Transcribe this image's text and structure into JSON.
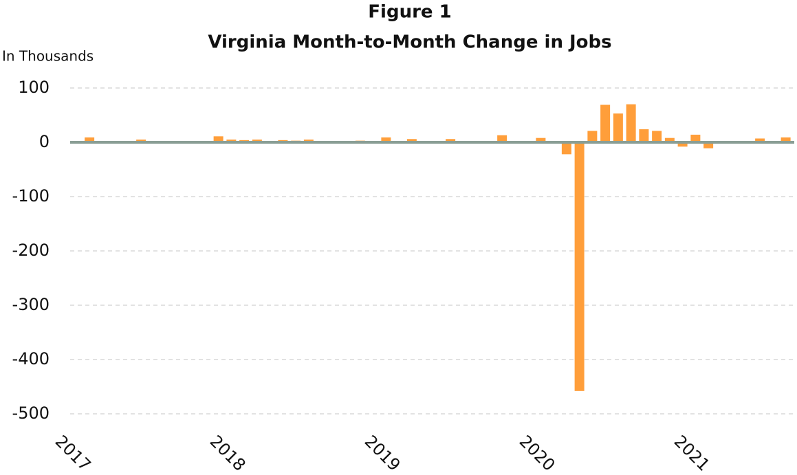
{
  "chart_data": {
    "type": "bar",
    "title": "Figure 1",
    "subtitle": "Virginia Month-to-Month Change in Jobs",
    "y_label": "In Thousands",
    "categories": [
      "2017",
      null,
      null,
      null,
      null,
      null,
      null,
      null,
      null,
      null,
      null,
      null,
      "2018",
      null,
      null,
      null,
      null,
      null,
      null,
      null,
      null,
      null,
      null,
      null,
      "2019",
      null,
      null,
      null,
      null,
      null,
      null,
      null,
      null,
      null,
      null,
      null,
      "2020",
      null,
      null,
      null,
      null,
      null,
      null,
      null,
      null,
      null,
      null,
      null,
      "2021",
      null,
      null,
      null,
      null,
      null,
      null,
      null
    ],
    "values": [
      0,
      9,
      0,
      0,
      1,
      5,
      0,
      0,
      0,
      2,
      0,
      11,
      5,
      4,
      5,
      0,
      4,
      3,
      5,
      0,
      0,
      1,
      3,
      0,
      9,
      0,
      6,
      0,
      0,
      6,
      0,
      0,
      0,
      13,
      0,
      0,
      8,
      0,
      -22,
      -458,
      21,
      69,
      53,
      70,
      24,
      21,
      8,
      -8,
      14,
      -11,
      0,
      2,
      0,
      7,
      0,
      9
    ],
    "color": "#ff9e3a",
    "zero_line_color": "#8a9e95",
    "ylim": [
      -510,
      110
    ],
    "yticks": [
      -500,
      -400,
      -300,
      -200,
      -100,
      0,
      100
    ],
    "grid": true
  }
}
